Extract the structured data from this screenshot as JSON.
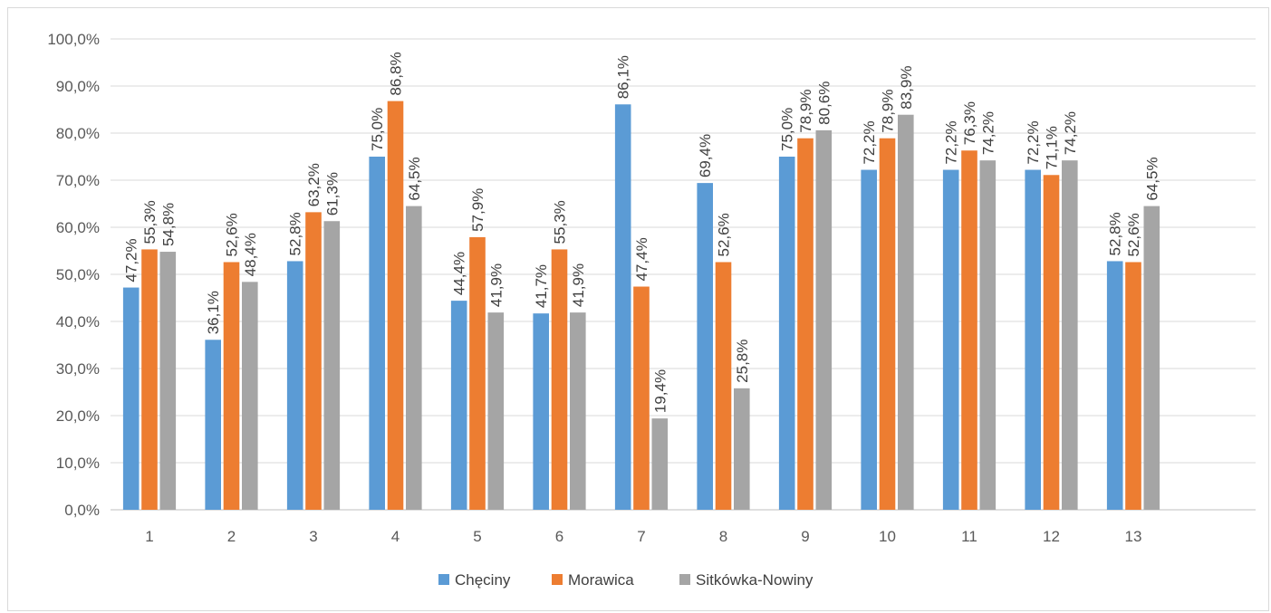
{
  "chart_data": {
    "type": "bar",
    "categories": [
      "1",
      "2",
      "3",
      "4",
      "5",
      "6",
      "7",
      "8",
      "9",
      "10",
      "11",
      "12",
      "13"
    ],
    "series": [
      {
        "name": "Chęciny",
        "color": "#5b9bd5",
        "values": [
          47.2,
          36.1,
          52.8,
          75.0,
          44.4,
          41.7,
          86.1,
          69.4,
          75.0,
          72.2,
          72.2,
          72.2,
          52.8
        ],
        "labels": [
          "47,2%",
          "36,1%",
          "52,8%",
          "75,0%",
          "44,4%",
          "41,7%",
          "86,1%",
          "69,4%",
          "75,0%",
          "72,2%",
          "72,2%",
          "72,2%",
          "52,8%"
        ]
      },
      {
        "name": "Morawica",
        "color": "#ed7d31",
        "values": [
          55.3,
          52.6,
          63.2,
          86.8,
          57.9,
          55.3,
          47.4,
          52.6,
          78.9,
          78.9,
          76.3,
          71.1,
          52.6
        ],
        "labels": [
          "55,3%",
          "52,6%",
          "63,2%",
          "86,8%",
          "57,9%",
          "55,3%",
          "47,4%",
          "52,6%",
          "78,9%",
          "78,9%",
          "76,3%",
          "71,1%",
          "52,6%"
        ]
      },
      {
        "name": "Sitkówka-Nowiny",
        "color": "#a5a5a5",
        "values": [
          54.8,
          48.4,
          61.3,
          64.5,
          41.9,
          41.9,
          19.4,
          25.8,
          80.6,
          83.9,
          74.2,
          74.2,
          64.5
        ],
        "labels": [
          "54,8%",
          "48,4%",
          "61,3%",
          "64,5%",
          "41,9%",
          "41,9%",
          "19,4%",
          "25,8%",
          "80,6%",
          "83,9%",
          "74,2%",
          "74,2%",
          "64,5%"
        ]
      }
    ],
    "y_ticks": [
      "0,0%",
      "10,0%",
      "20,0%",
      "30,0%",
      "40,0%",
      "50,0%",
      "60,0%",
      "70,0%",
      "80,0%",
      "90,0%",
      "100,0%"
    ],
    "ylim": [
      0,
      100
    ],
    "grid": true,
    "legend": "bottom"
  }
}
